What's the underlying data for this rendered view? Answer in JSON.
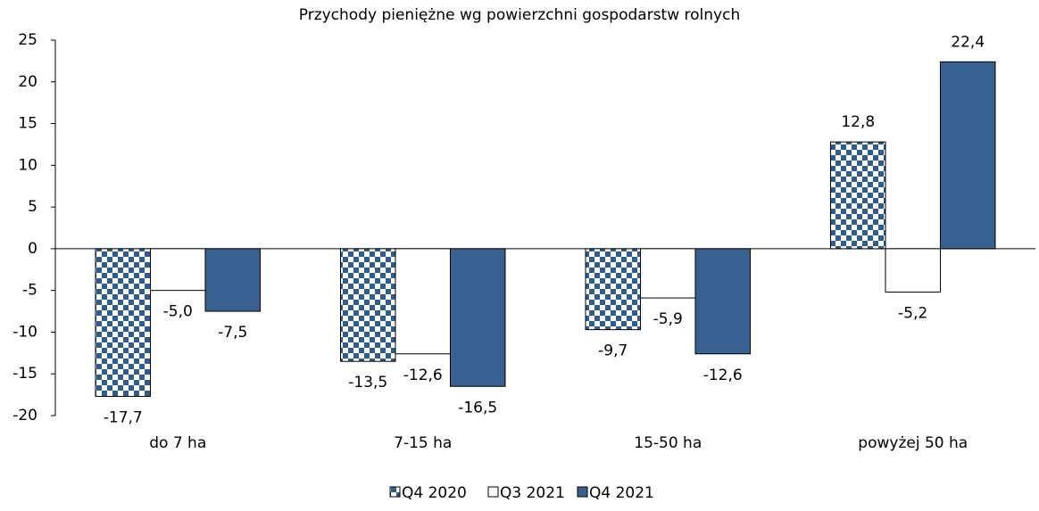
{
  "chart_data": {
    "type": "bar",
    "title": "Przychody pieniężne wg powierzchni gospodarstw rolnych",
    "categories": [
      "do 7 ha",
      "7-15 ha",
      "15-50 ha",
      "powyżej 50 ha"
    ],
    "series": [
      {
        "name": "Q4 2020",
        "color": "#2f5d8f",
        "fill": "checker",
        "values": [
          -17.7,
          -13.5,
          -9.7,
          12.8
        ],
        "value_labels": [
          "-17,7",
          "-13,5",
          "-9,7",
          "12,8"
        ]
      },
      {
        "name": "Q3 2021",
        "color": "#ffffff",
        "values": [
          -5.0,
          -12.6,
          -5.9,
          -5.2
        ],
        "value_labels": [
          "-5,0",
          "-12,6",
          "-5,9",
          "-5,2"
        ]
      },
      {
        "name": "Q4 2021",
        "color": "#386192",
        "values": [
          -7.5,
          -16.5,
          -12.6,
          22.4
        ],
        "value_labels": [
          "-7,5",
          "-16,5",
          "-12,6",
          "22,4"
        ]
      }
    ],
    "ylim": [
      -20,
      25
    ],
    "yticks": [
      -20,
      -15,
      -10,
      -5,
      0,
      5,
      10,
      15,
      20,
      25
    ],
    "legend": "bottom"
  }
}
